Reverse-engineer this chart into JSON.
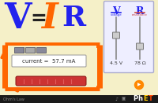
{
  "bg_color": "#f5f0c8",
  "title_V": "V",
  "title_eq": "=",
  "title_I": "I",
  "title_R": "R",
  "color_V": "#2222ee",
  "color_eq": "#222222",
  "color_I": "#ff6600",
  "color_R": "#2222ee",
  "current_text": "current =  57.7 mA",
  "panel_V_label": "V",
  "panel_R_label": "R",
  "panel_V_sub": "voltage",
  "panel_R_sub": "resistance",
  "panel_V_val": "4.5 V",
  "panel_R_val": "78 Ω",
  "bottom_label": "Ohm's Law",
  "arrow_color": "#ff6600",
  "resistor_color": "#cc3333",
  "panel_bg": "#eeeeff",
  "panel_border": "#aaaacc"
}
